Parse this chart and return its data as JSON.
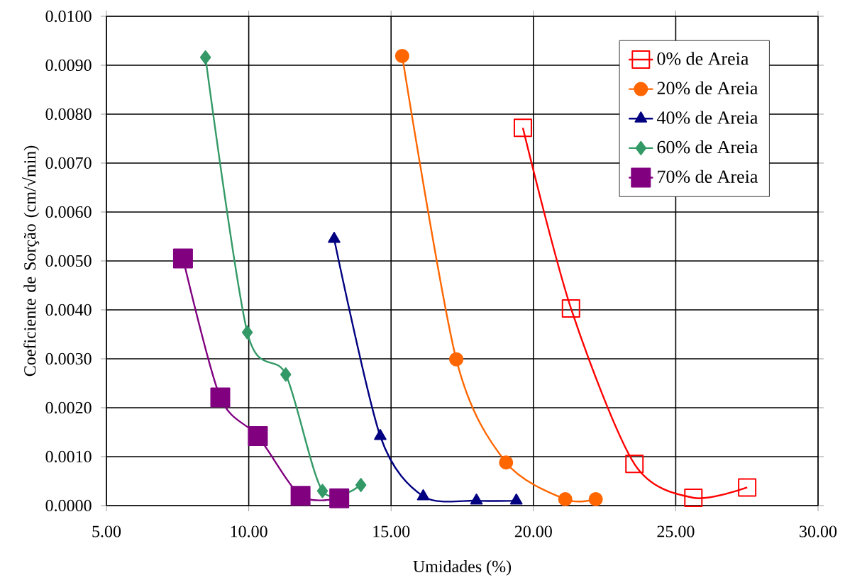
{
  "chart_data": {
    "type": "line",
    "xlabel": "Umidades (%)",
    "ylabel": "Coeficiente de Sorção (cm/√min)",
    "xlim": [
      5,
      30
    ],
    "ylim": [
      0,
      0.01
    ],
    "xticks": [
      {
        "value": 5,
        "label": "5.00"
      },
      {
        "value": 10,
        "label": "10.00"
      },
      {
        "value": 15,
        "label": "15.00"
      },
      {
        "value": 20,
        "label": "20.00"
      },
      {
        "value": 25,
        "label": "25.00"
      },
      {
        "value": 30,
        "label": "30.00"
      }
    ],
    "yticks": [
      {
        "value": 0,
        "label": "0.0000"
      },
      {
        "value": 0.001,
        "label": "0.0010"
      },
      {
        "value": 0.002,
        "label": "0.0020"
      },
      {
        "value": 0.003,
        "label": "0.0030"
      },
      {
        "value": 0.004,
        "label": "0.0040"
      },
      {
        "value": 0.005,
        "label": "0.0050"
      },
      {
        "value": 0.006,
        "label": "0.0060"
      },
      {
        "value": 0.007,
        "label": "0.0070"
      },
      {
        "value": 0.008,
        "label": "0.0080"
      },
      {
        "value": 0.009,
        "label": "0.0090"
      },
      {
        "value": 0.01,
        "label": "0.0100"
      }
    ],
    "grid": true,
    "legend": "top right",
    "series": [
      {
        "name": "0% de Areia",
        "color": "#ff0000",
        "marker": "square",
        "x": [
          19.63,
          21.32,
          23.55,
          25.62,
          27.51
        ],
        "values": [
          0.00772,
          0.00403,
          0.00085,
          0.00016,
          0.00037
        ]
      },
      {
        "name": "20% de Areia",
        "color": "#ff6600",
        "marker": "circle",
        "x": [
          15.39,
          17.29,
          19.04,
          21.12,
          22.19
        ],
        "values": [
          0.00919,
          0.00299,
          0.00088,
          0.00013,
          0.00013
        ]
      },
      {
        "name": "40% de Areia",
        "color": "#000080",
        "marker": "triangle",
        "x": [
          13.0,
          14.62,
          16.13,
          18.0,
          19.4
        ],
        "values": [
          0.00545,
          0.00142,
          0.00019,
          0.0001,
          0.0001
        ]
      },
      {
        "name": "60% de Areia",
        "color": "#339966",
        "marker": "diamond",
        "x": [
          8.48,
          9.95,
          11.3,
          12.59,
          13.94
        ],
        "values": [
          0.00916,
          0.00354,
          0.00268,
          0.0003,
          0.00042
        ]
      },
      {
        "name": "70% de Areia",
        "color": "#800080",
        "marker": "square",
        "x": [
          7.69,
          9.0,
          10.32,
          11.82,
          13.18
        ],
        "values": [
          0.00505,
          0.00221,
          0.00142,
          0.0002,
          0.00015
        ]
      }
    ]
  }
}
